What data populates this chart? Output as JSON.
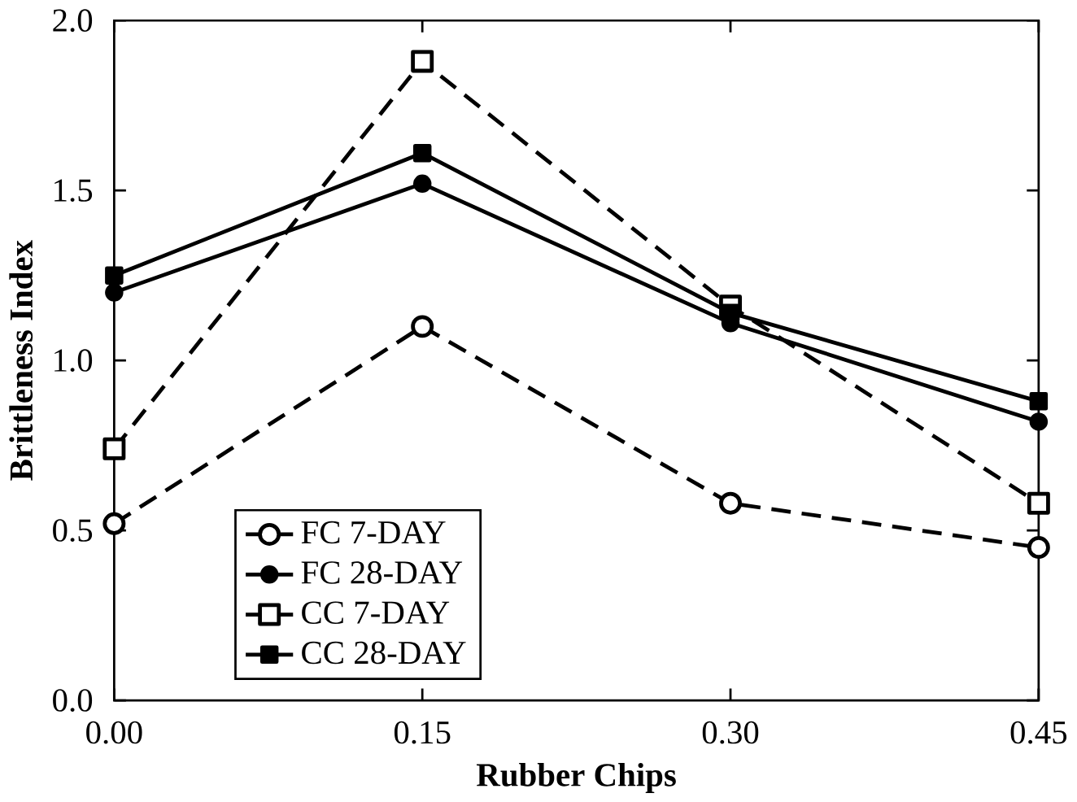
{
  "chart_data": {
    "type": "line",
    "xlabel": "Rubber Chips",
    "ylabel": "Brittleness Index",
    "x": [
      0.0,
      0.15,
      0.3,
      0.45
    ],
    "xlim": [
      0,
      0.45
    ],
    "xticks": [
      {
        "value": 0,
        "label": "0.00"
      },
      {
        "value": 0.15,
        "label": "0.15"
      },
      {
        "value": 0.3,
        "label": "0.30"
      },
      {
        "value": 0.45,
        "label": "0.45"
      }
    ],
    "ylim": [
      0,
      2
    ],
    "yticks": [
      {
        "value": 0,
        "label": "0.0"
      },
      {
        "value": 0.5,
        "label": "0.5"
      },
      {
        "value": 1,
        "label": "1.0"
      },
      {
        "value": 1.5,
        "label": "1.5"
      },
      {
        "value": 2,
        "label": "2.0"
      }
    ],
    "grid": false,
    "legend": "bottom left",
    "series": [
      {
        "name": "FC 7-DAY",
        "color": "#000000",
        "values": [
          0.52,
          1.1,
          0.58,
          0.45
        ],
        "marker": "circle",
        "line_style": "dashed"
      },
      {
        "name": "FC 28-DAY",
        "color": "#000000",
        "values": [
          1.2,
          1.52,
          1.11,
          0.82
        ],
        "marker": "circle",
        "line_style": "solid"
      },
      {
        "name": "CC 7-DAY",
        "color": "#000000",
        "values": [
          0.74,
          1.88,
          1.16,
          0.58
        ],
        "marker": "square",
        "line_style": "dashed"
      },
      {
        "name": "CC 28-DAY",
        "color": "#000000",
        "values": [
          1.25,
          1.61,
          1.14,
          0.88
        ],
        "marker": "square",
        "line_style": "solid"
      }
    ]
  }
}
